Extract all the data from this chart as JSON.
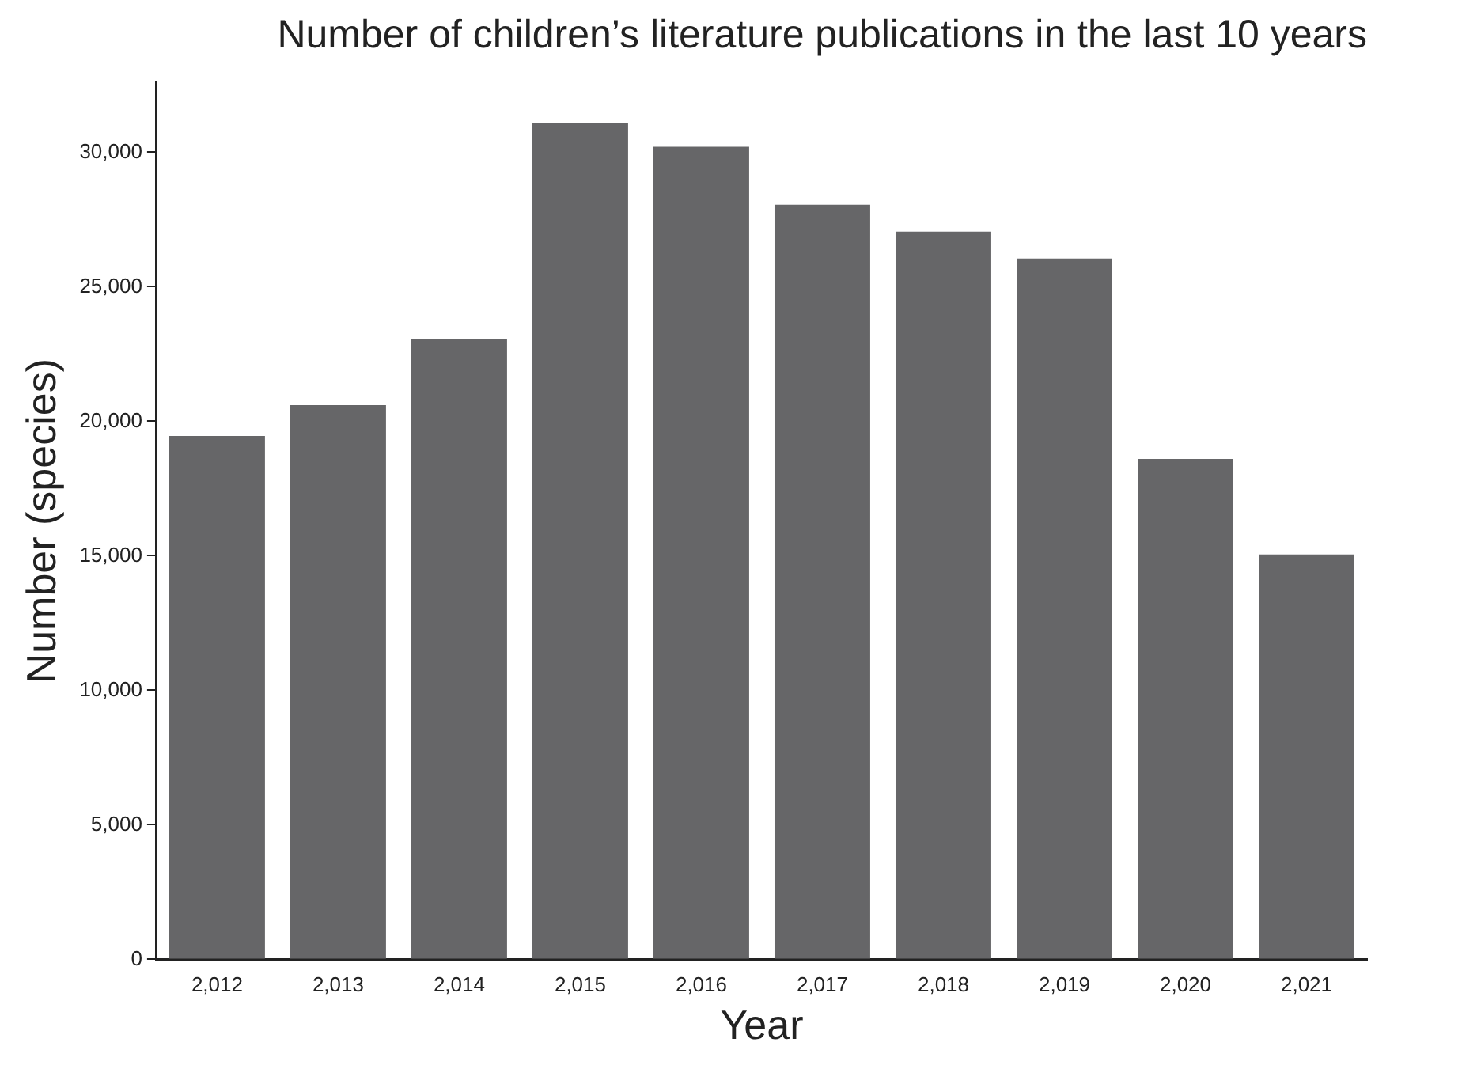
{
  "chart_data": {
    "type": "bar",
    "title": "Number of children’s literature publications in the last 10 years",
    "xlabel": "Year",
    "ylabel": "Number (species)",
    "categories": [
      "2,012",
      "2,013",
      "2,014",
      "2,015",
      "2,016",
      "2,017",
      "2,018",
      "2,019",
      "2,020",
      "2,021"
    ],
    "values": [
      19450,
      20600,
      23050,
      31100,
      30200,
      28050,
      27050,
      26050,
      18600,
      15050
    ],
    "color": "#666668",
    "ylim": [
      0,
      32600
    ],
    "yticks": [
      0,
      {
        "value": 5000,
        "label": "5,000"
      },
      {
        "value": 10000,
        "label": "10,000"
      },
      {
        "value": 15000,
        "label": "15,000"
      },
      {
        "value": 20000,
        "label": "20,000"
      },
      {
        "value": 25000,
        "label": "25,000"
      },
      {
        "value": 30000,
        "label": "30,000"
      }
    ],
    "grid": false,
    "legend": false
  }
}
